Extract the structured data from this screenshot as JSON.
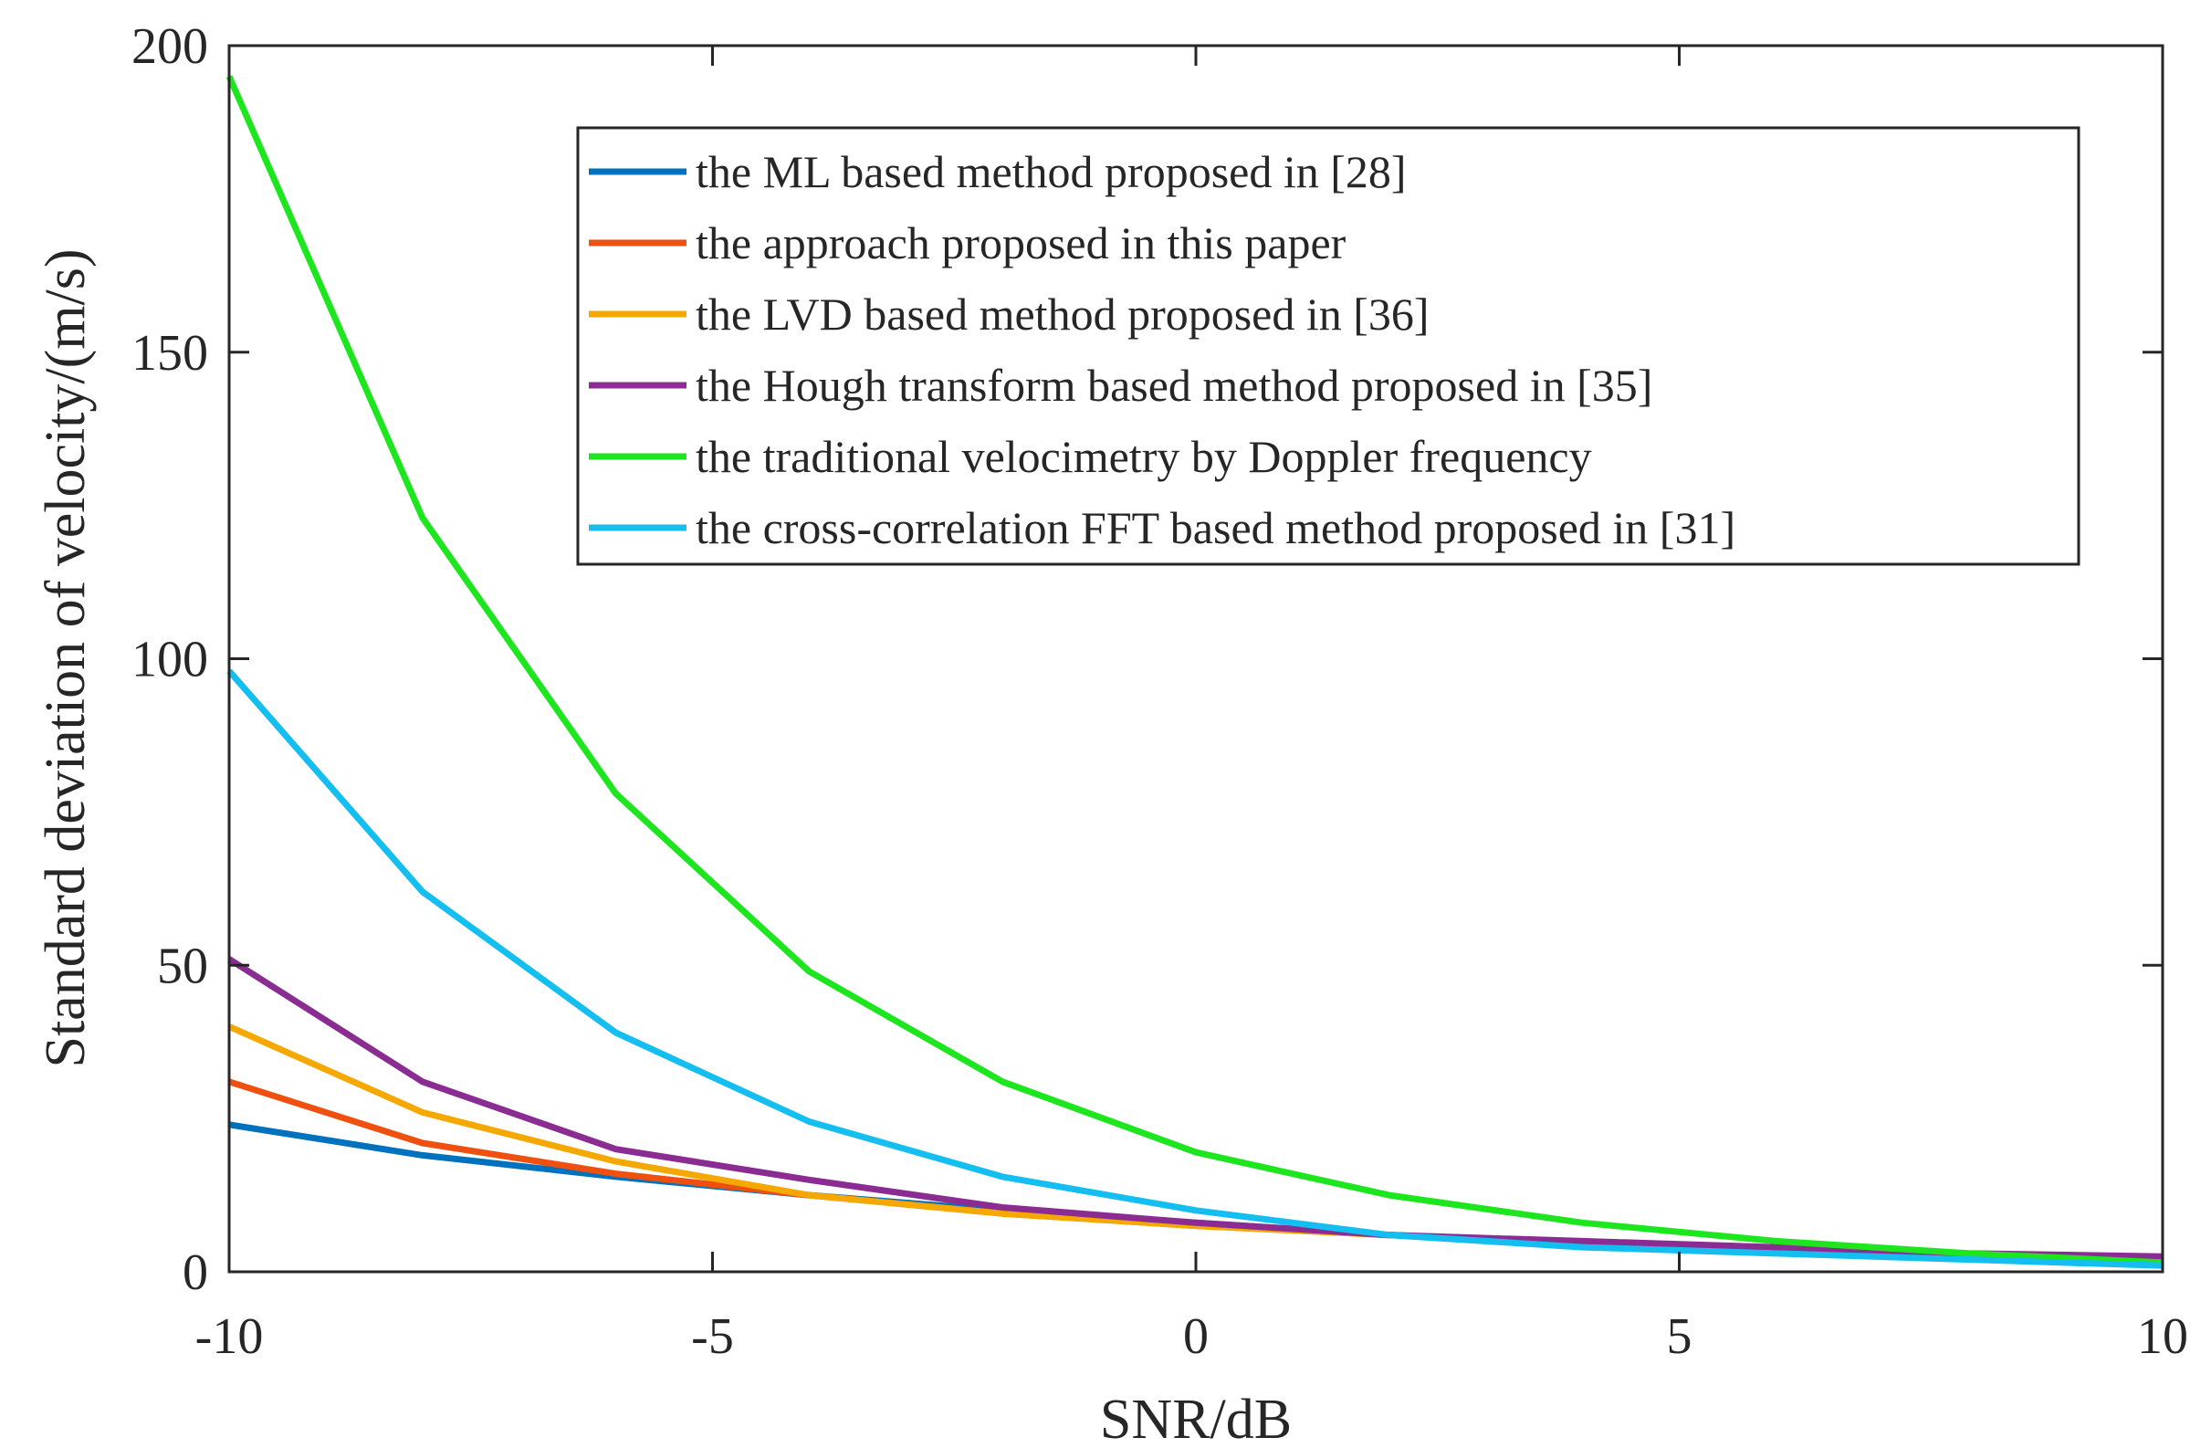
{
  "chart_data": {
    "type": "line",
    "xlabel": "SNR/dB",
    "ylabel": "Standard deviation of velocity/(m/s)",
    "xlim": [
      -10,
      10
    ],
    "ylim": [
      0,
      200
    ],
    "xticks": [
      -10,
      -5,
      0,
      5,
      10
    ],
    "yticks": [
      0,
      50,
      100,
      150,
      200
    ],
    "xtick_labels": [
      "-10",
      "-5",
      "0",
      "5",
      "10"
    ],
    "ytick_labels": [
      "0",
      "50",
      "100",
      "150",
      "200"
    ],
    "grid": false,
    "legend_position": "top-right",
    "x": [
      -10,
      -8,
      -6,
      -4,
      -2,
      0,
      2,
      4,
      6,
      8,
      10
    ],
    "series": [
      {
        "name": "the ML based method proposed in [28]",
        "color": "#0072BD",
        "values": [
          24,
          19,
          15.5,
          12.5,
          10,
          8,
          6,
          4.5,
          3.5,
          2.5,
          2
        ]
      },
      {
        "name": "the approach proposed in this paper",
        "color": "#F0500F",
        "values": [
          31,
          21,
          16,
          12.5,
          9.5,
          7.5,
          6,
          4.5,
          3.5,
          2.5,
          2
        ]
      },
      {
        "name": "the LVD based method proposed in [36]",
        "color": "#F5A800",
        "values": [
          40,
          26,
          18,
          12.5,
          9.5,
          7.5,
          6,
          4.5,
          3.5,
          2.5,
          2
        ]
      },
      {
        "name": "the Hough transform based method proposed in [35]",
        "color": "#8B2C92",
        "values": [
          51,
          31,
          20,
          15,
          10.5,
          8,
          6,
          5,
          4,
          3,
          2.5
        ]
      },
      {
        "name": "the traditional velocimetry by Doppler frequency",
        "color": "#1EE61E",
        "values": [
          195,
          123,
          78,
          49,
          31,
          19.5,
          12.5,
          8,
          5,
          3,
          1.5
        ]
      },
      {
        "name": "the cross-correlation FFT based method proposed in [31]",
        "color": "#14BEF0",
        "values": [
          98,
          62,
          39,
          24.5,
          15.5,
          10,
          6,
          4,
          3,
          2,
          1
        ]
      }
    ]
  }
}
